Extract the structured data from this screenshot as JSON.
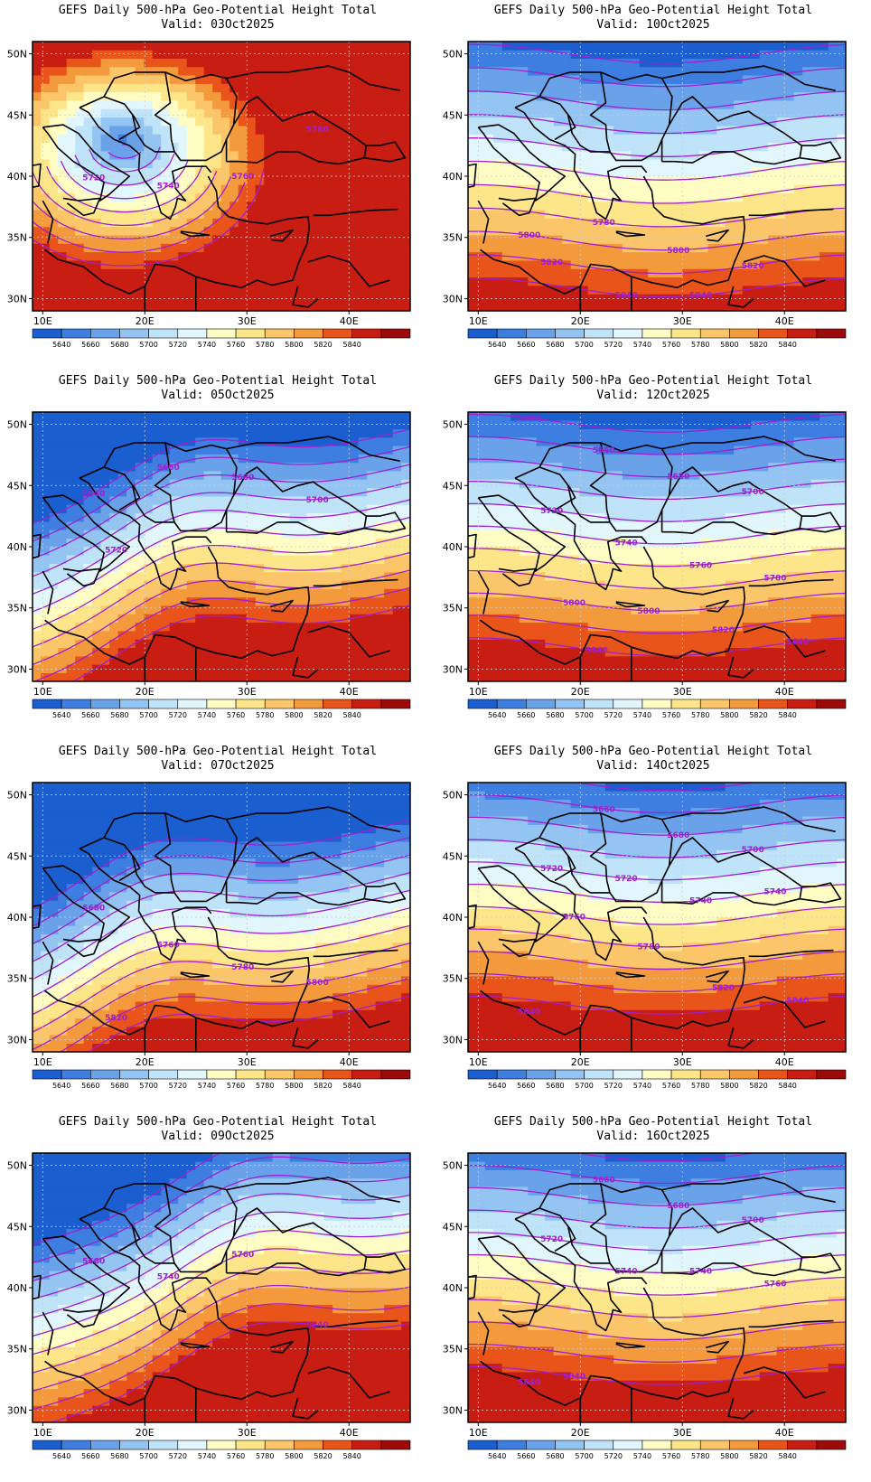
{
  "product": {
    "title": "GEFS Daily 500-hPa Geo-Potential Height Total",
    "valid_prefix": "Valid:"
  },
  "axes": {
    "lat_labels": [
      "30N",
      "35N",
      "40N",
      "45N",
      "50N"
    ],
    "lat_values": [
      30,
      35,
      40,
      45,
      50
    ],
    "lon_labels": [
      "10E",
      "20E",
      "30E",
      "40E"
    ],
    "lon_values": [
      10,
      20,
      30,
      40
    ],
    "lon_range": [
      9,
      46
    ],
    "lat_range": [
      29,
      51
    ]
  },
  "colorbar": {
    "labels": [
      "5640",
      "5660",
      "5680",
      "5700",
      "5720",
      "5740",
      "5760",
      "5780",
      "5800",
      "5820",
      "5840"
    ],
    "colors": [
      "#1a5ecf",
      "#3d7ee0",
      "#6aa2ea",
      "#93c4f2",
      "#bfe3f9",
      "#e2f6fd",
      "#fffcc4",
      "#fde68a",
      "#fbc56a",
      "#f39a3c",
      "#e8541a",
      "#c81d12",
      "#9c0a0a"
    ]
  },
  "contour_color": "#a020d0",
  "panels": [
    {
      "name": "panel-03oct",
      "valid": "03Oct2025",
      "col": 0,
      "row": 0,
      "contour_labels": [
        "5720",
        "5740",
        "5760",
        "5780"
      ],
      "field": {
        "base": 5600,
        "spread": 260,
        "trough_lon": 18,
        "trough_lat": 43,
        "shape": "closed-low"
      }
    },
    {
      "name": "panel-10oct",
      "valid": "10Oct2025",
      "col": 1,
      "row": 0,
      "contour_labels": [
        "5800",
        "5780",
        "5800",
        "5820",
        "5820",
        "5840",
        "5840"
      ],
      "field": {
        "base": 5640,
        "spread": 220,
        "trough_lon": 30,
        "trough_lat": 50,
        "shape": "zonal"
      }
    },
    {
      "name": "panel-05oct",
      "valid": "05Oct2025",
      "col": 0,
      "row": 1,
      "contour_labels": [
        "5640",
        "5660",
        "5680",
        "5700",
        "5720"
      ],
      "field": {
        "base": 5610,
        "spread": 250,
        "trough_lon": 24,
        "trough_lat": 47,
        "shape": "trough"
      }
    },
    {
      "name": "panel-12oct",
      "valid": "12Oct2025",
      "col": 1,
      "row": 1,
      "contour_labels": [
        "5640",
        "5660",
        "5680",
        "5700",
        "5720",
        "5740",
        "5760",
        "5780",
        "5800",
        "5800",
        "5820",
        "5840",
        "5840"
      ],
      "field": {
        "base": 5630,
        "spread": 230,
        "trough_lon": 30,
        "trough_lat": 51,
        "shape": "zonal"
      }
    },
    {
      "name": "panel-07oct",
      "valid": "07Oct2025",
      "col": 0,
      "row": 2,
      "contour_labels": [
        "5680",
        "5760",
        "5780",
        "5800",
        "5820"
      ],
      "field": {
        "base": 5620,
        "spread": 250,
        "trough_lon": 21,
        "trough_lat": 44,
        "shape": "trough"
      }
    },
    {
      "name": "panel-14oct",
      "valid": "14Oct2025",
      "col": 1,
      "row": 2,
      "contour_labels": [
        "5640",
        "5660",
        "5680",
        "5700",
        "5720",
        "5720",
        "5740",
        "5740",
        "5760",
        "5780",
        "5820",
        "5840"
      ],
      "field": {
        "base": 5630,
        "spread": 230,
        "trough_lon": 28,
        "trough_lat": 52,
        "shape": "zonal"
      }
    },
    {
      "name": "panel-09oct",
      "valid": "09Oct2025",
      "col": 0,
      "row": 3,
      "contour_labels": [
        "5680",
        "5740",
        "5760",
        "5840"
      ],
      "field": {
        "base": 5630,
        "spread": 240,
        "trough_lon": 30,
        "trough_lat": 49,
        "shape": "trough"
      }
    },
    {
      "name": "panel-16oct",
      "valid": "16Oct2025",
      "col": 1,
      "row": 3,
      "contour_labels": [
        "5640",
        "5660",
        "5680",
        "5700",
        "5720",
        "5740",
        "5740",
        "5760",
        "5840"
      ],
      "field": {
        "base": 5630,
        "spread": 230,
        "trough_lon": 27,
        "trough_lat": 52,
        "shape": "zonal"
      }
    }
  ]
}
